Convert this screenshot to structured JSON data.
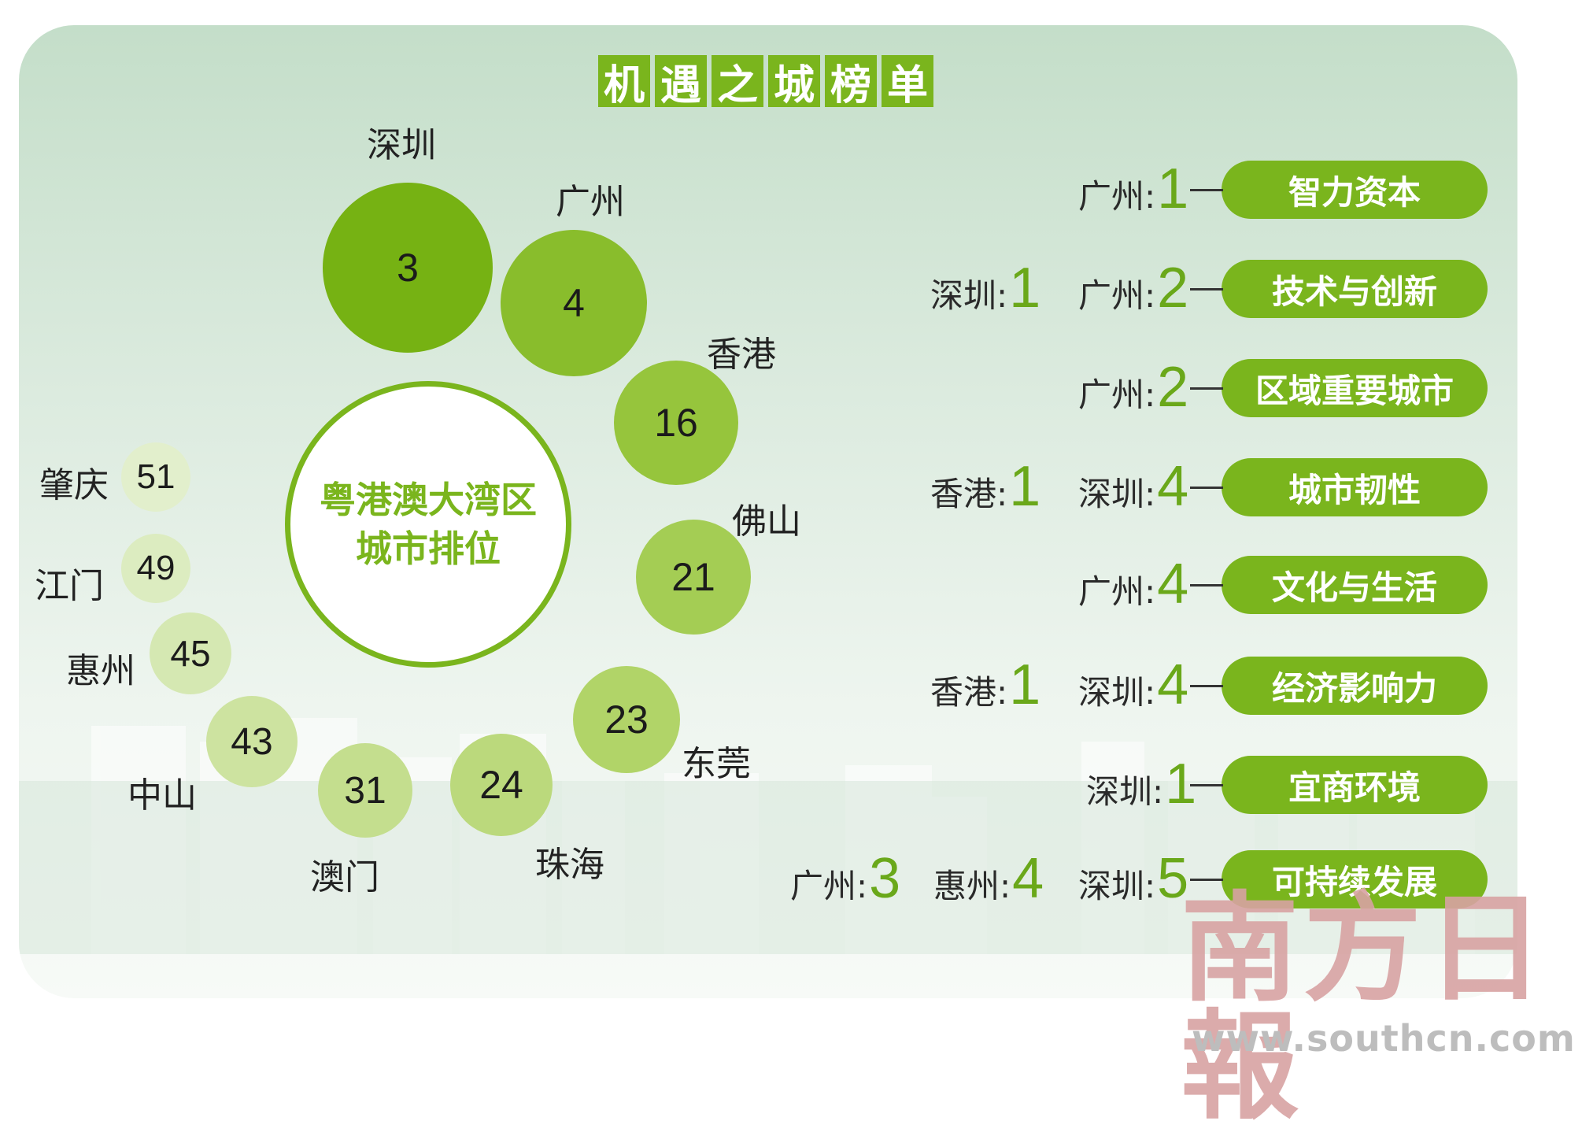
{
  "title_chars": [
    "机",
    "遇",
    "之",
    "城",
    "榜",
    "单"
  ],
  "center": {
    "line1": "粤港澳大湾区",
    "line2": "城市排位"
  },
  "bubbles": [
    {
      "city": "深圳",
      "rank": "3"
    },
    {
      "city": "广州",
      "rank": "4"
    },
    {
      "city": "香港",
      "rank": "16"
    },
    {
      "city": "佛山",
      "rank": "21"
    },
    {
      "city": "东莞",
      "rank": "23"
    },
    {
      "city": "珠海",
      "rank": "24"
    },
    {
      "city": "澳门",
      "rank": "31"
    },
    {
      "city": "中山",
      "rank": "43"
    },
    {
      "city": "惠州",
      "rank": "45"
    },
    {
      "city": "江门",
      "rank": "49"
    },
    {
      "city": "肇庆",
      "rank": "51"
    }
  ],
  "categories": [
    {
      "label": "智力资本",
      "ranks": [
        {
          "city": "广州:",
          "rank": "1"
        }
      ]
    },
    {
      "label": "技术与创新",
      "ranks": [
        {
          "city": "深圳:",
          "rank": "1"
        },
        {
          "city": "广州:",
          "rank": "2"
        }
      ]
    },
    {
      "label": "区域重要城市",
      "ranks": [
        {
          "city": "广州:",
          "rank": "2"
        }
      ]
    },
    {
      "label": "城市韧性",
      "ranks": [
        {
          "city": "香港:",
          "rank": "1"
        },
        {
          "city": "深圳:",
          "rank": "4"
        }
      ]
    },
    {
      "label": "文化与生活",
      "ranks": [
        {
          "city": "广州:",
          "rank": "4"
        }
      ]
    },
    {
      "label": "经济影响力",
      "ranks": [
        {
          "city": "香港:",
          "rank": "1"
        },
        {
          "city": "深圳:",
          "rank": "4"
        }
      ]
    },
    {
      "label": "宜商环境",
      "ranks": [
        {
          "city": "深圳:",
          "rank": "1"
        }
      ]
    },
    {
      "label": "可持续发展",
      "ranks": [
        {
          "city": "广州:",
          "rank": "3"
        },
        {
          "city": "惠州:",
          "rank": "4"
        },
        {
          "city": "深圳:",
          "rank": "5"
        }
      ]
    }
  ],
  "watermark": {
    "text": "南方日報",
    "url": "www.southcn.com"
  },
  "colors": {
    "accent": "#7ab51d",
    "accent_dark": "#6aa81a",
    "panel_top": "#c4dec9"
  }
}
